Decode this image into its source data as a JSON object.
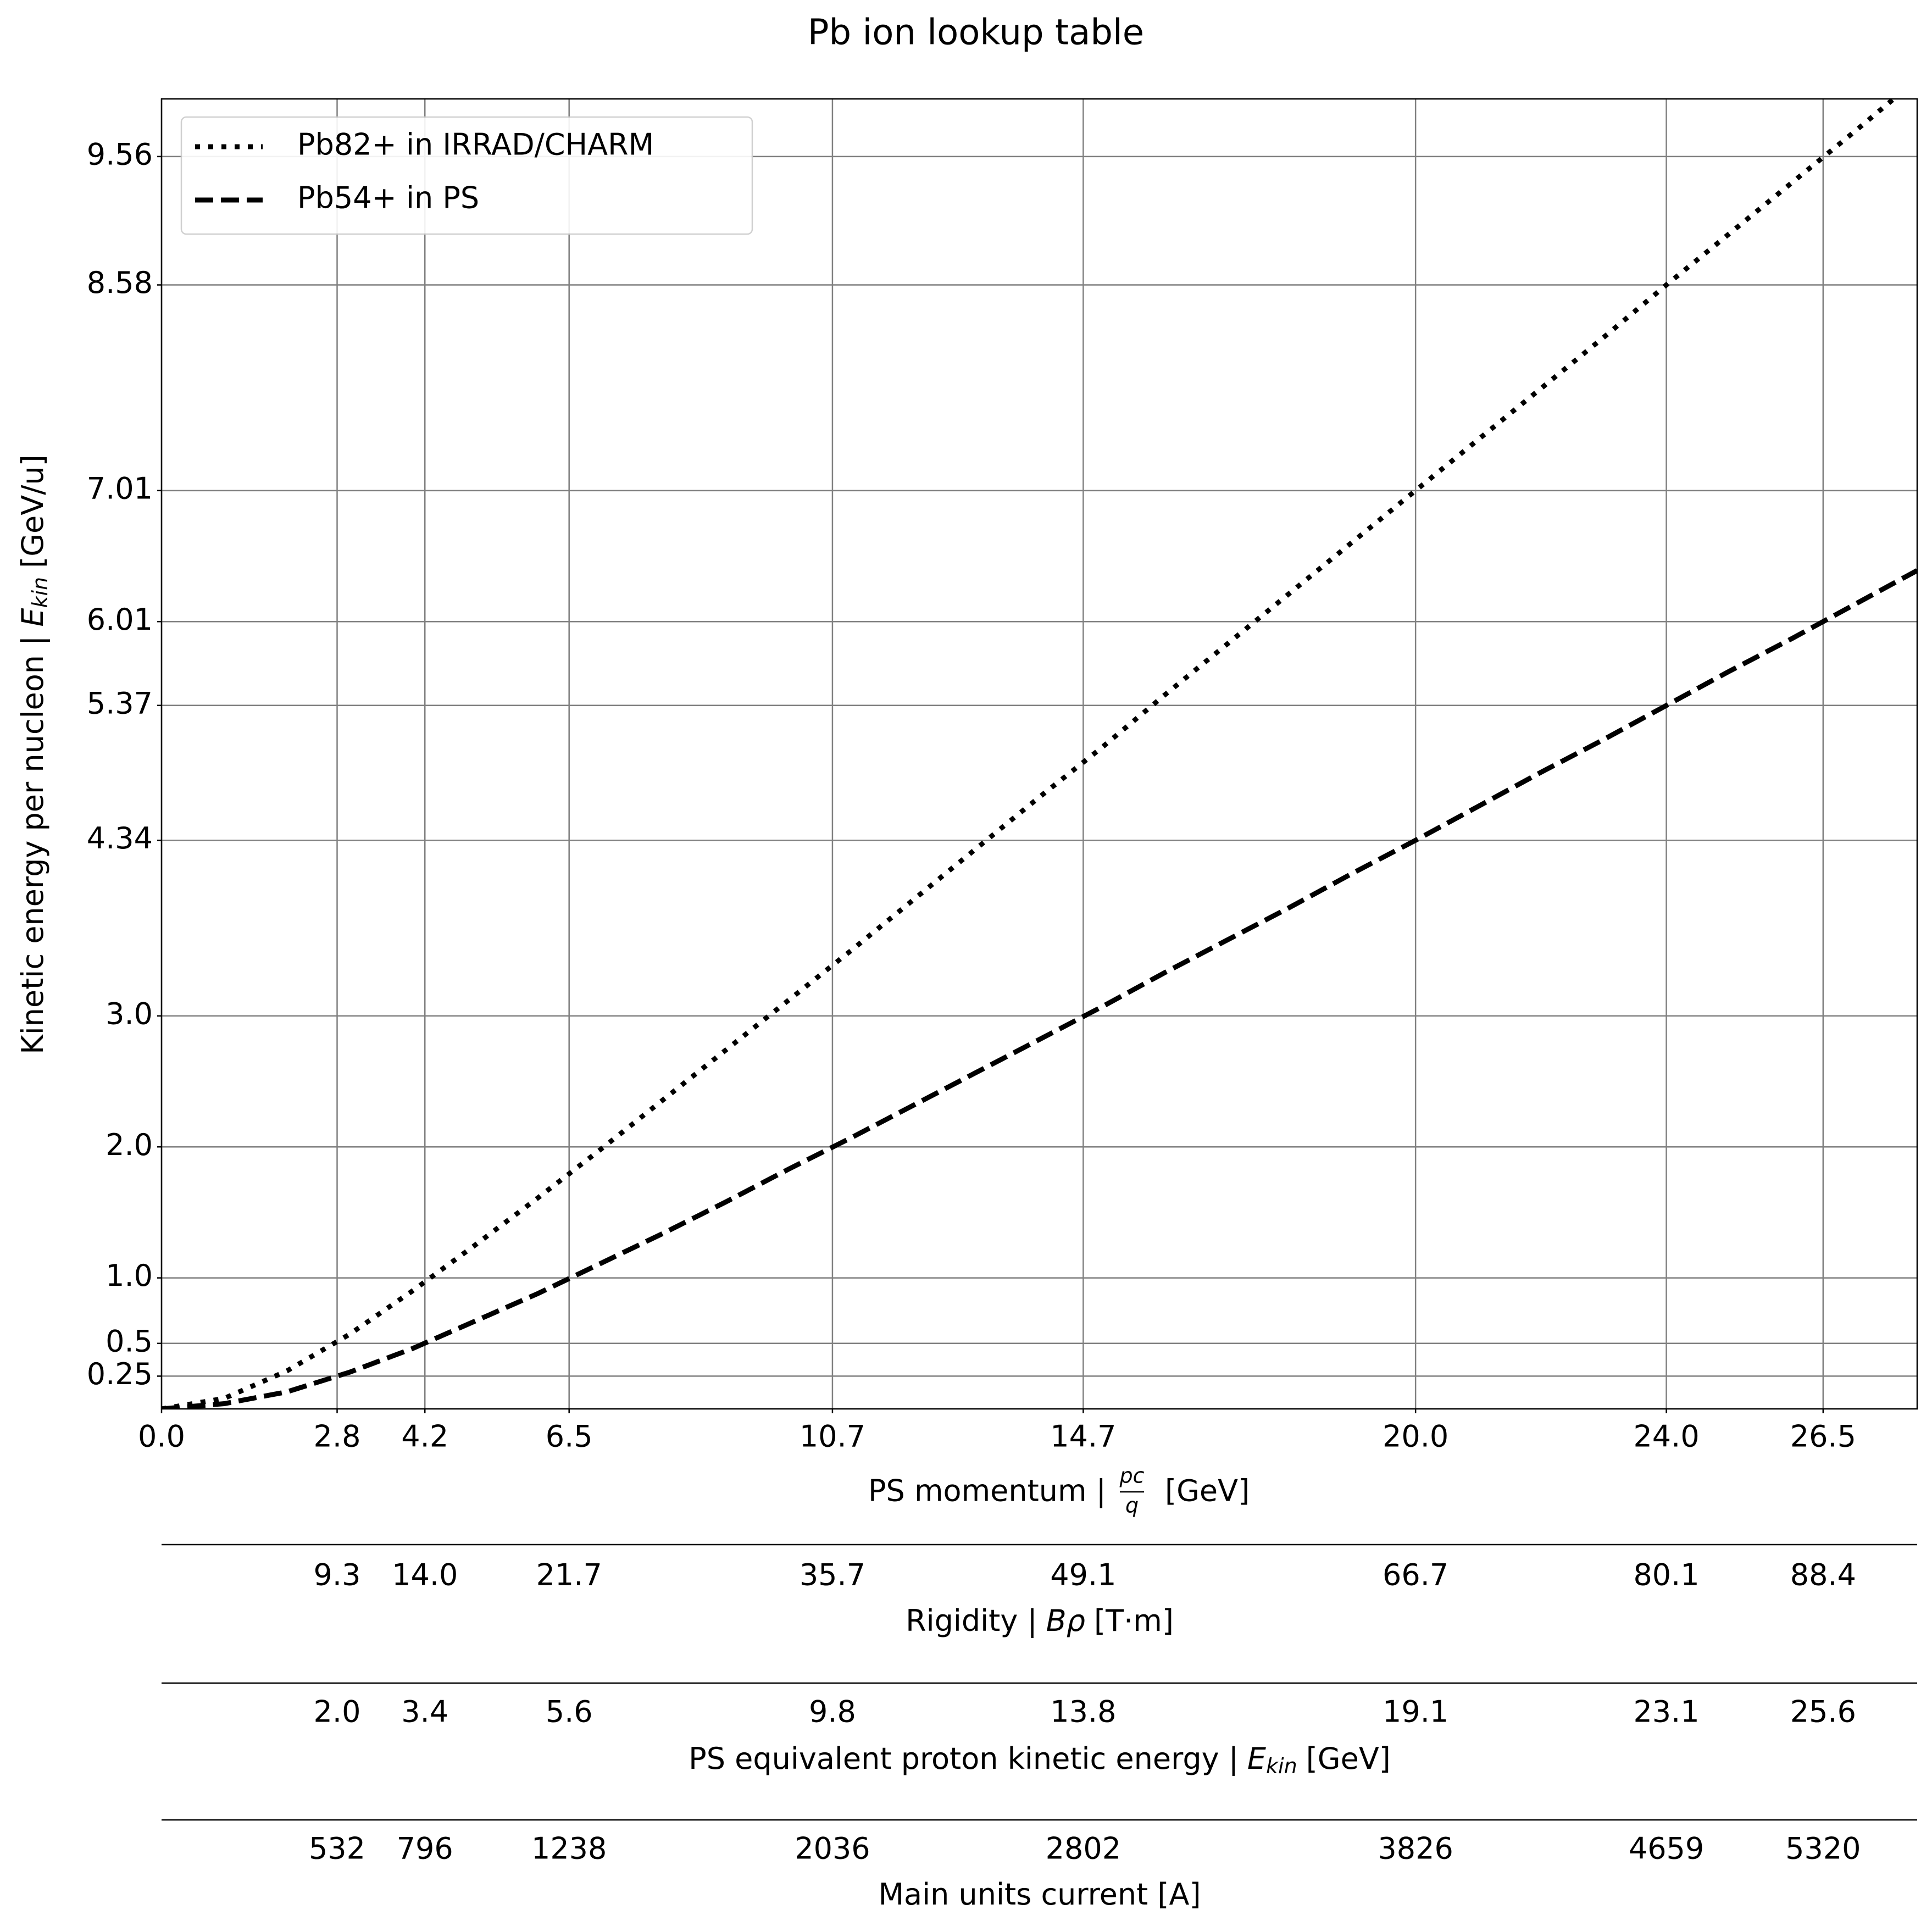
{
  "chart_data": {
    "type": "line",
    "title": "Pb ion lookup table",
    "x_label": {
      "text": "PS momentum |",
      "numerator": "pc",
      "denominator": "q",
      "unit": "[GeV]"
    },
    "y_label": {
      "text": "Kinetic energy per nucleon |",
      "symbol": "E",
      "subscript": "kin",
      "unit": "[GeV/u]"
    },
    "x": [
      0,
      1,
      2,
      3,
      4,
      5,
      6,
      7,
      8,
      9,
      10,
      11,
      12,
      13,
      14,
      15,
      16,
      17,
      18,
      19,
      20,
      21,
      22,
      23,
      24,
      25,
      26,
      27,
      28
    ],
    "series": [
      {
        "name": "Pb82+ in IRRAD/CHARM",
        "color": "#000000",
        "style": "dotted",
        "values": [
          0,
          0.08,
          0.29,
          0.57,
          0.9,
          1.25,
          1.61,
          1.98,
          2.36,
          2.74,
          3.12,
          3.5,
          3.89,
          4.28,
          4.67,
          5.05,
          5.45,
          5.84,
          6.23,
          6.62,
          7.01,
          7.4,
          7.79,
          8.18,
          8.58,
          8.97,
          9.36,
          9.75,
          10.15
        ]
      },
      {
        "name": "Pb54+ in PS",
        "color": "#000000",
        "style": "dashed",
        "values": [
          0,
          0.04,
          0.13,
          0.28,
          0.46,
          0.67,
          0.88,
          1.11,
          1.34,
          1.58,
          1.83,
          2.07,
          2.32,
          2.57,
          2.82,
          3.07,
          3.33,
          3.58,
          3.83,
          4.09,
          4.34,
          4.6,
          4.86,
          5.11,
          5.37,
          5.63,
          5.88,
          6.14,
          6.4
        ]
      }
    ],
    "xlim": [
      0,
      28
    ],
    "ylim": [
      0,
      10
    ],
    "xticks": [
      {
        "value": 0,
        "label": "0.0"
      },
      2.8,
      4.2,
      6.5,
      10.7,
      14.7,
      {
        "value": 20,
        "label": "20.0"
      },
      {
        "value": 24,
        "label": "24.0"
      },
      26.5
    ],
    "yticks": [
      0.25,
      0.5,
      {
        "value": 1,
        "label": "1.0"
      },
      {
        "value": 2,
        "label": "2.0"
      },
      {
        "value": 3,
        "label": "3.0"
      },
      4.34,
      5.37,
      6.01,
      7.01,
      8.58,
      9.56
    ],
    "grid": true,
    "legend": "upper left",
    "secondary_axes": [
      {
        "label": [
          "Rigidity |",
          "Bρ",
          "[T·m]"
        ],
        "tick_labels": [
          "9.3",
          "14.0",
          "21.7",
          "35.7",
          "49.1",
          "66.7",
          "80.1",
          "88.4"
        ]
      },
      {
        "label": [
          "PS equivalent proton kinetic energy |",
          "E",
          "kin",
          "[GeV]"
        ],
        "tick_labels": [
          "2.0",
          "3.4",
          "5.6",
          "9.8",
          "13.8",
          "19.1",
          "23.1",
          "25.6"
        ]
      },
      {
        "label": [
          "Main units current [A]"
        ],
        "tick_labels": [
          "532",
          "796",
          "1238",
          "2036",
          "2802",
          "3826",
          "4659",
          "5320"
        ]
      }
    ]
  }
}
